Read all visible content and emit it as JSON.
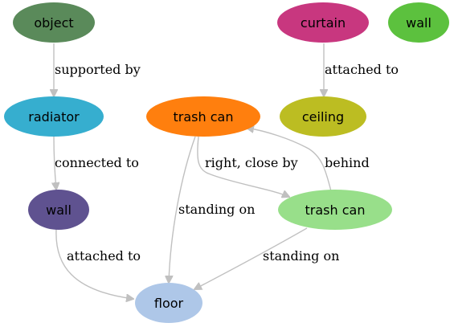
{
  "graph": {
    "nodes": [
      {
        "id": "object",
        "label": "object",
        "color": "#5a8a5a"
      },
      {
        "id": "curtain",
        "label": "curtain",
        "color": "#c8377f"
      },
      {
        "id": "wall_top",
        "label": "wall",
        "color": "#5cc13e"
      },
      {
        "id": "radiator",
        "label": "radiator",
        "color": "#36aecf"
      },
      {
        "id": "trashcan1",
        "label": "trash can",
        "color": "#ff7f0e"
      },
      {
        "id": "ceiling",
        "label": "ceiling",
        "color": "#bcbd22"
      },
      {
        "id": "wall_mid",
        "label": "wall",
        "color": "#5f5290"
      },
      {
        "id": "trashcan2",
        "label": "trash can",
        "color": "#98df8a"
      },
      {
        "id": "floor",
        "label": "floor",
        "color": "#aec7e8"
      }
    ],
    "edges": [
      {
        "from": "object",
        "to": "radiator",
        "label": "supported by"
      },
      {
        "from": "curtain",
        "to": "ceiling",
        "label": "attached to"
      },
      {
        "from": "radiator",
        "to": "wall_mid",
        "label": "connected to"
      },
      {
        "from": "wall_mid",
        "to": "floor",
        "label": "attached to"
      },
      {
        "from": "trashcan1",
        "to": "trashcan2",
        "label": "right, close by"
      },
      {
        "from": "trashcan2",
        "to": "trashcan1",
        "label": "behind"
      },
      {
        "from": "trashcan1",
        "to": "floor",
        "label": "standing on"
      },
      {
        "from": "trashcan2",
        "to": "floor",
        "label": "standing on"
      }
    ]
  }
}
